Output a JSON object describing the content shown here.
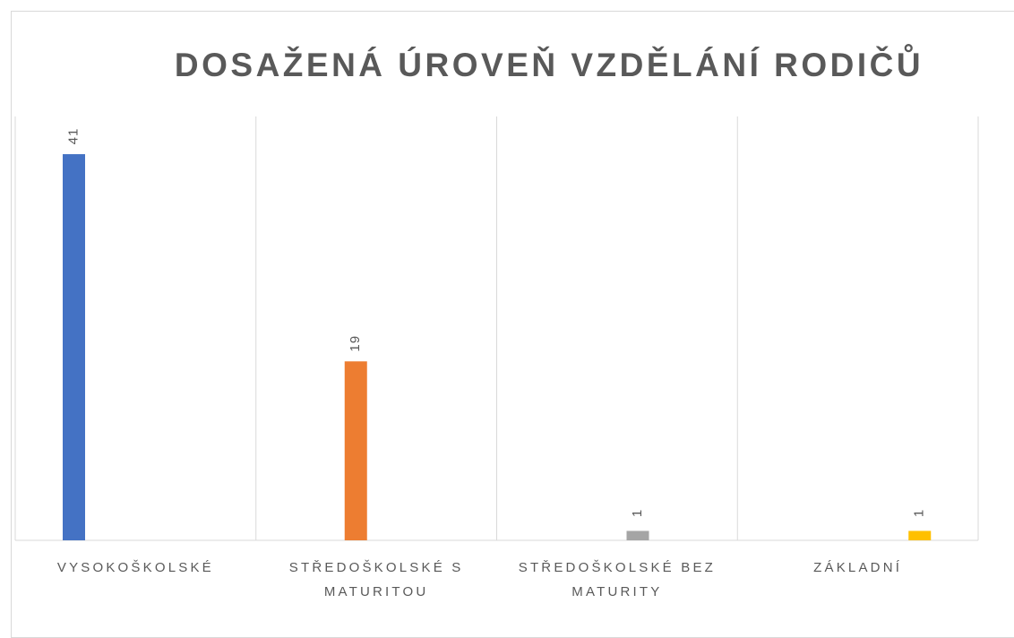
{
  "chart_data": {
    "type": "bar",
    "title": "DOSAŽENÁ ÚROVEŇ VZDĚLÁNÍ RODIČŮ",
    "categories": [
      "VYSOKOŠKOLSKÉ",
      "STŘEDOŠKOLSKÉ S MATURITOU",
      "STŘEDOŠKOLSKÉ BEZ MATURITY",
      "ZÁKLADNÍ"
    ],
    "values": [
      41,
      19,
      1,
      1
    ],
    "colors": [
      "#4472c4",
      "#ed7d31",
      "#a5a5a5",
      "#ffc000"
    ],
    "ylim": [
      0,
      45
    ],
    "grid": true
  }
}
